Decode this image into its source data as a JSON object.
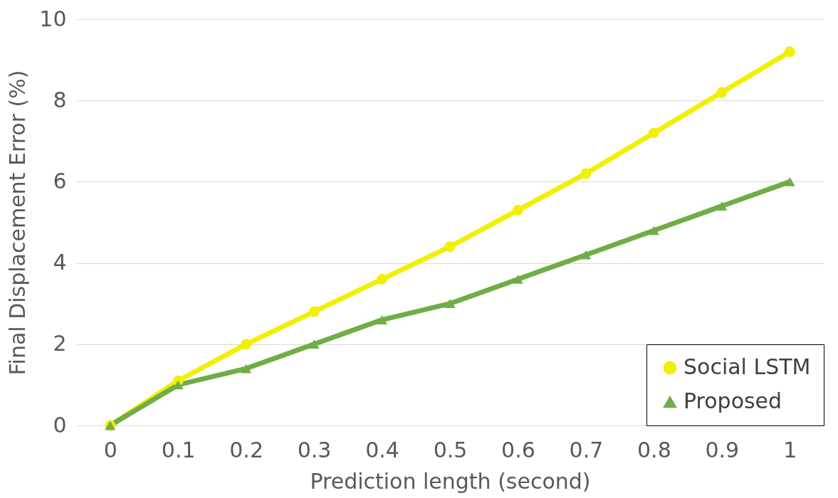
{
  "chart_data": {
    "type": "line",
    "xlabel": "Prediction length (second)",
    "ylabel": "Final Displacement Error  (%)",
    "categories": [
      "0",
      "0.1",
      "0.2",
      "0.3",
      "0.4",
      "0.5",
      "0.6",
      "0.7",
      "0.8",
      "0.9",
      "1"
    ],
    "series": [
      {
        "name": "Social LSTM",
        "color": "#f0f000",
        "marker": "circle",
        "values": [
          0,
          1.1,
          2.0,
          2.8,
          3.6,
          4.4,
          5.3,
          6.2,
          7.2,
          8.2,
          9.2
        ]
      },
      {
        "name": "Proposed",
        "color": "#70ad47",
        "marker": "triangle",
        "values": [
          0,
          1.0,
          1.4,
          2.0,
          2.6,
          3.0,
          3.6,
          4.2,
          4.8,
          5.4,
          6.0
        ]
      }
    ],
    "ylim": [
      0,
      10
    ],
    "yticks": [
      0,
      2,
      4,
      6,
      8,
      10
    ],
    "grid": "y",
    "legend": "bottom right"
  }
}
